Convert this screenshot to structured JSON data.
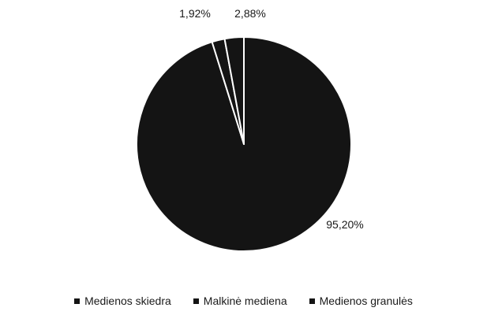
{
  "chart_data": {
    "type": "pie",
    "categories": [
      "Medienos skiedra",
      "Malkinė mediena",
      "Medienos granulės"
    ],
    "values": [
      95.2,
      1.92,
      2.88
    ],
    "data_labels": [
      "95,20%",
      "1,92%",
      "2,88%"
    ],
    "colors": [
      "#141414",
      "#141414",
      "#141414"
    ],
    "slice_separator_color": "#ffffff",
    "start_angle_deg": 0,
    "direction": "clockwise",
    "legend_position": "bottom"
  }
}
